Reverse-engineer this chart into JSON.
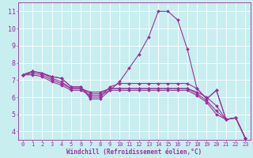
{
  "xlabel": "Windchill (Refroidissement éolien,°C)",
  "bg_color": "#c8eef0",
  "line_color": "#993399",
  "grid_color": "#ffffff",
  "series": [
    [
      7.3,
      7.5,
      7.4,
      7.2,
      7.1,
      6.6,
      6.6,
      5.9,
      5.9,
      6.4,
      6.9,
      7.7,
      8.5,
      9.5,
      11.0,
      11.0,
      10.5,
      8.8,
      6.5,
      5.9,
      6.4,
      4.7,
      4.8,
      3.6
    ],
    [
      7.3,
      7.5,
      7.4,
      7.2,
      7.1,
      6.6,
      6.6,
      6.0,
      6.0,
      6.6,
      6.8,
      6.8,
      6.8,
      6.8,
      6.8,
      6.8,
      6.8,
      6.8,
      6.5,
      5.9,
      6.4,
      4.7,
      4.8,
      3.6
    ],
    [
      7.3,
      7.5,
      7.4,
      7.1,
      6.9,
      6.5,
      6.5,
      6.3,
      6.3,
      6.5,
      6.5,
      6.5,
      6.5,
      6.5,
      6.5,
      6.5,
      6.5,
      6.5,
      6.3,
      6.0,
      5.5,
      4.7,
      4.8,
      3.6
    ],
    [
      7.3,
      7.4,
      7.3,
      7.0,
      6.8,
      6.5,
      6.5,
      6.2,
      6.2,
      6.5,
      6.5,
      6.5,
      6.5,
      6.5,
      6.5,
      6.5,
      6.5,
      6.5,
      6.2,
      5.8,
      5.2,
      4.7,
      4.8,
      3.6
    ],
    [
      7.3,
      7.3,
      7.2,
      6.9,
      6.7,
      6.4,
      6.4,
      6.1,
      6.1,
      6.4,
      6.4,
      6.4,
      6.4,
      6.4,
      6.4,
      6.4,
      6.4,
      6.4,
      6.1,
      5.7,
      5.0,
      4.7,
      4.8,
      3.6
    ]
  ],
  "ylim": [
    3.5,
    11.5
  ],
  "yticks": [
    4,
    5,
    6,
    7,
    8,
    9,
    10,
    11
  ],
  "xlim": [
    -0.5,
    23.5
  ],
  "xticks": [
    0,
    1,
    2,
    3,
    4,
    5,
    6,
    7,
    8,
    9,
    10,
    11,
    12,
    13,
    14,
    15,
    16,
    17,
    18,
    19,
    20,
    21,
    22,
    23
  ],
  "tick_fontsize": 5,
  "xlabel_fontsize": 5.5,
  "marker_size": 2,
  "line_width": 0.8
}
